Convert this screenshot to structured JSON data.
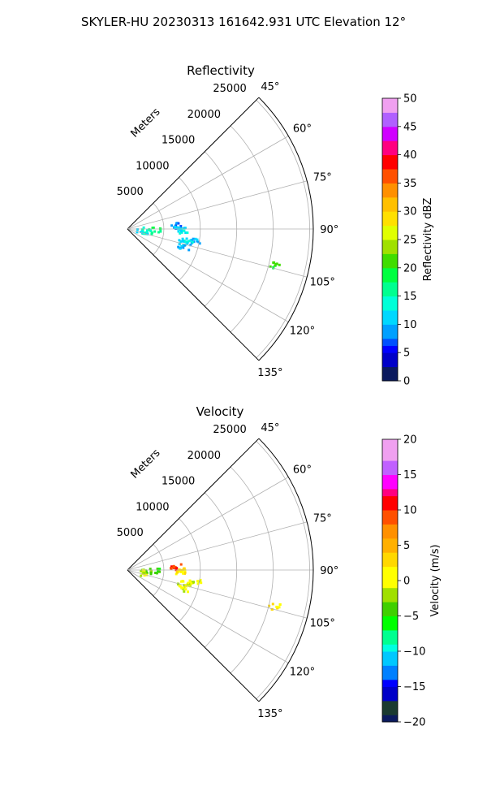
{
  "suptitle": "SKYLER-HU  20230313  161642.931 UTC Elevation 12°",
  "chart_data": [
    {
      "type": "polar-sector",
      "title": "Reflectivity",
      "radial_label": "Meters",
      "r_ticks": [
        5000,
        10000,
        15000,
        20000,
        25000
      ],
      "r_tick_labels": [
        "5000",
        "10000",
        "15000",
        "20000",
        "25000"
      ],
      "theta_range_deg": [
        45,
        135
      ],
      "theta_ticks": [
        "45°",
        "60°",
        "75°",
        "90°",
        "105°",
        "120°",
        "135°"
      ],
      "grid": true,
      "colorbar": {
        "label": "Reflectivity dBZ",
        "range": [
          0,
          50
        ],
        "ticks": [
          "0",
          "5",
          "10",
          "15",
          "20",
          "25",
          "30",
          "35",
          "40",
          "45",
          "50"
        ]
      },
      "echoes": [
        {
          "theta": 84.5,
          "r": 6600,
          "value": 8
        },
        {
          "theta": 89.5,
          "r": 7000,
          "value": 11
        },
        {
          "theta": 90.2,
          "r": 7400,
          "value": 13
        },
        {
          "theta": 91.5,
          "r": 3800,
          "value": 17
        },
        {
          "theta": 92.3,
          "r": 2600,
          "value": 16
        },
        {
          "theta": 95.5,
          "r": 1900,
          "value": 12
        },
        {
          "theta": 100,
          "r": 9300,
          "value": 9
        },
        {
          "theta": 101,
          "r": 8300,
          "value": 13
        },
        {
          "theta": 103,
          "r": 7600,
          "value": 12
        },
        {
          "theta": 103.5,
          "r": 20600,
          "value": 20
        },
        {
          "theta": 108,
          "r": 7900,
          "value": 10
        }
      ]
    },
    {
      "type": "polar-sector",
      "title": "Velocity",
      "radial_label": "Meters",
      "r_ticks": [
        5000,
        10000,
        15000,
        20000,
        25000
      ],
      "r_tick_labels": [
        "5000",
        "10000",
        "15000",
        "20000",
        "25000"
      ],
      "theta_range_deg": [
        45,
        135
      ],
      "theta_ticks": [
        "45°",
        "60°",
        "75°",
        "90°",
        "105°",
        "120°",
        "135°"
      ],
      "grid": true,
      "colorbar": {
        "label": "Velocity (m/s)",
        "range": [
          -20,
          20
        ],
        "ticks": [
          "−20",
          "−15",
          "−10",
          "−5",
          "0",
          "5",
          "10",
          "15",
          "20"
        ]
      },
      "echoes": [
        {
          "theta": 84.5,
          "r": 6600,
          "value": 10
        },
        {
          "theta": 89.5,
          "r": 7000,
          "value": 3
        },
        {
          "theta": 90.2,
          "r": 7400,
          "value": 2
        },
        {
          "theta": 91.5,
          "r": 3800,
          "value": -4
        },
        {
          "theta": 92.3,
          "r": 2600,
          "value": -3
        },
        {
          "theta": 95.5,
          "r": 1900,
          "value": 0
        },
        {
          "theta": 100,
          "r": 9300,
          "value": 0
        },
        {
          "theta": 101,
          "r": 8300,
          "value": 0
        },
        {
          "theta": 103,
          "r": 7600,
          "value": 0
        },
        {
          "theta": 103.5,
          "r": 20600,
          "value": 2
        },
        {
          "theta": 108,
          "r": 7900,
          "value": 0
        }
      ]
    }
  ]
}
